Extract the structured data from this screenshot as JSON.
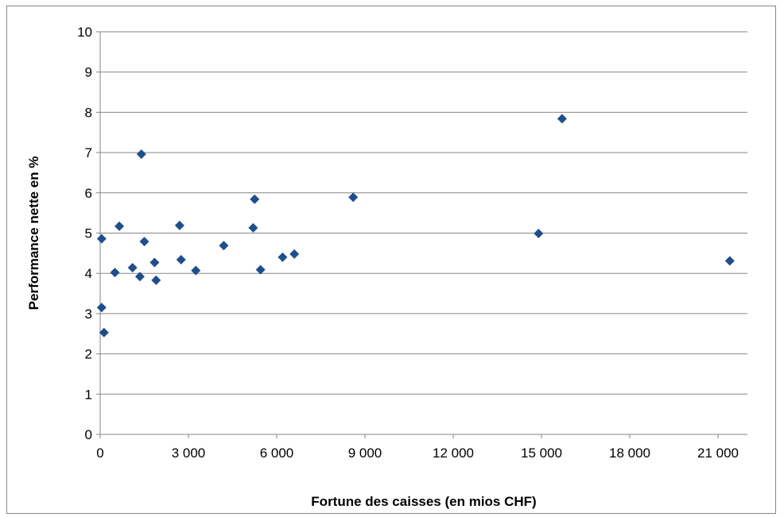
{
  "chart_data": {
    "type": "scatter",
    "title": "",
    "xlabel": "Fortune des caisses (en mios CHF)",
    "ylabel": "Performance nette en %",
    "xlim": [
      0,
      22000
    ],
    "ylim": [
      0,
      10
    ],
    "x_ticks": [
      0,
      3000,
      6000,
      9000,
      12000,
      15000,
      18000,
      21000
    ],
    "x_tick_labels": [
      "0",
      "3 000",
      "6 000",
      "9 000",
      "12 000",
      "15 000",
      "18 000",
      "21 000"
    ],
    "y_ticks": [
      0,
      1,
      2,
      3,
      4,
      5,
      6,
      7,
      8,
      9,
      10
    ],
    "y_tick_labels": [
      "0",
      "1",
      "2",
      "3",
      "4",
      "5",
      "6",
      "7",
      "8",
      "9",
      "10"
    ],
    "grid": "horizontal",
    "legend": "none",
    "marker": "diamond",
    "marker_color": "#1F4E8C",
    "points": [
      {
        "x": 50,
        "y": 4.86
      },
      {
        "x": 50,
        "y": 3.15
      },
      {
        "x": 130,
        "y": 2.53
      },
      {
        "x": 500,
        "y": 4.02
      },
      {
        "x": 650,
        "y": 5.17
      },
      {
        "x": 1100,
        "y": 4.14
      },
      {
        "x": 1400,
        "y": 6.96
      },
      {
        "x": 1350,
        "y": 3.92
      },
      {
        "x": 1500,
        "y": 4.79
      },
      {
        "x": 1850,
        "y": 4.27
      },
      {
        "x": 1900,
        "y": 3.83
      },
      {
        "x": 2700,
        "y": 5.19
      },
      {
        "x": 2750,
        "y": 4.34
      },
      {
        "x": 3250,
        "y": 4.07
      },
      {
        "x": 4200,
        "y": 4.69
      },
      {
        "x": 5250,
        "y": 5.84
      },
      {
        "x": 5200,
        "y": 5.13
      },
      {
        "x": 5450,
        "y": 4.09
      },
      {
        "x": 6200,
        "y": 4.4
      },
      {
        "x": 6600,
        "y": 4.48
      },
      {
        "x": 8600,
        "y": 5.89
      },
      {
        "x": 14900,
        "y": 4.99
      },
      {
        "x": 15700,
        "y": 7.84
      },
      {
        "x": 21400,
        "y": 4.31
      }
    ]
  }
}
